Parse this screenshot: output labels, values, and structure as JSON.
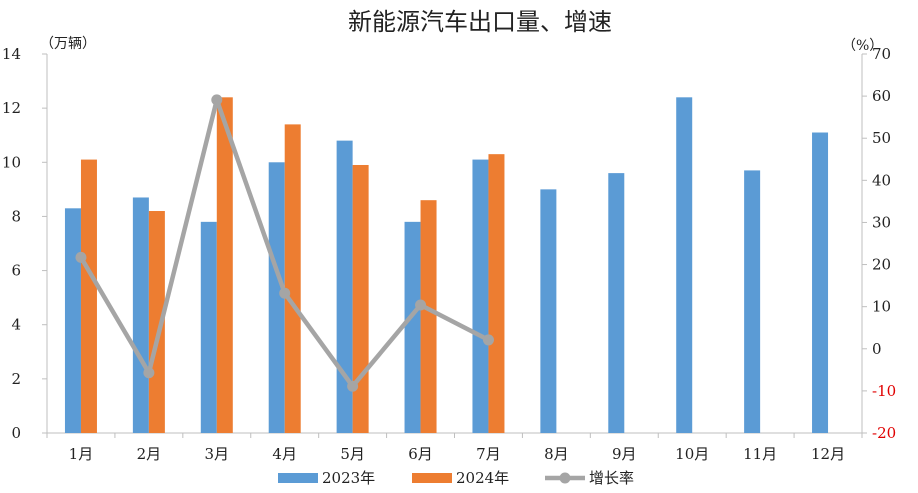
{
  "chart_data": {
    "type": "bar",
    "title": "新能源汽车出口量、增速",
    "left_axis_unit": "（万辆）",
    "right_axis_unit": "（%）",
    "categories": [
      "1月",
      "2月",
      "3月",
      "4月",
      "5月",
      "6月",
      "7月",
      "8月",
      "9月",
      "10月",
      "11月",
      "12月"
    ],
    "series": [
      {
        "name": "2023年",
        "kind": "bar",
        "axis": "left",
        "color": "#5b9bd5",
        "values": [
          8.3,
          8.7,
          7.8,
          10.0,
          10.8,
          7.8,
          10.1,
          9.0,
          9.6,
          12.4,
          9.7,
          11.1
        ]
      },
      {
        "name": "2024年",
        "kind": "bar",
        "axis": "left",
        "color": "#ed7d31",
        "values": [
          10.1,
          8.2,
          12.4,
          11.4,
          9.9,
          8.6,
          10.3,
          null,
          null,
          null,
          null,
          null
        ]
      },
      {
        "name": "增长率",
        "kind": "line",
        "axis": "right",
        "color": "#a5a5a5",
        "values": [
          21.7,
          -5.7,
          59.1,
          13.2,
          -8.9,
          10.4,
          2.1,
          null,
          null,
          null,
          null,
          null
        ]
      }
    ],
    "ylim_left": [
      0,
      14
    ],
    "yticks_left": [
      0,
      2,
      4,
      6,
      8,
      10,
      12,
      14
    ],
    "ylim_right": [
      -20,
      70
    ],
    "yticks_right": [
      -20,
      -10,
      0,
      10,
      20,
      30,
      40,
      50,
      60,
      70
    ],
    "negative_tick_color": "#e00000",
    "legend_position": "bottom",
    "grid": false
  }
}
